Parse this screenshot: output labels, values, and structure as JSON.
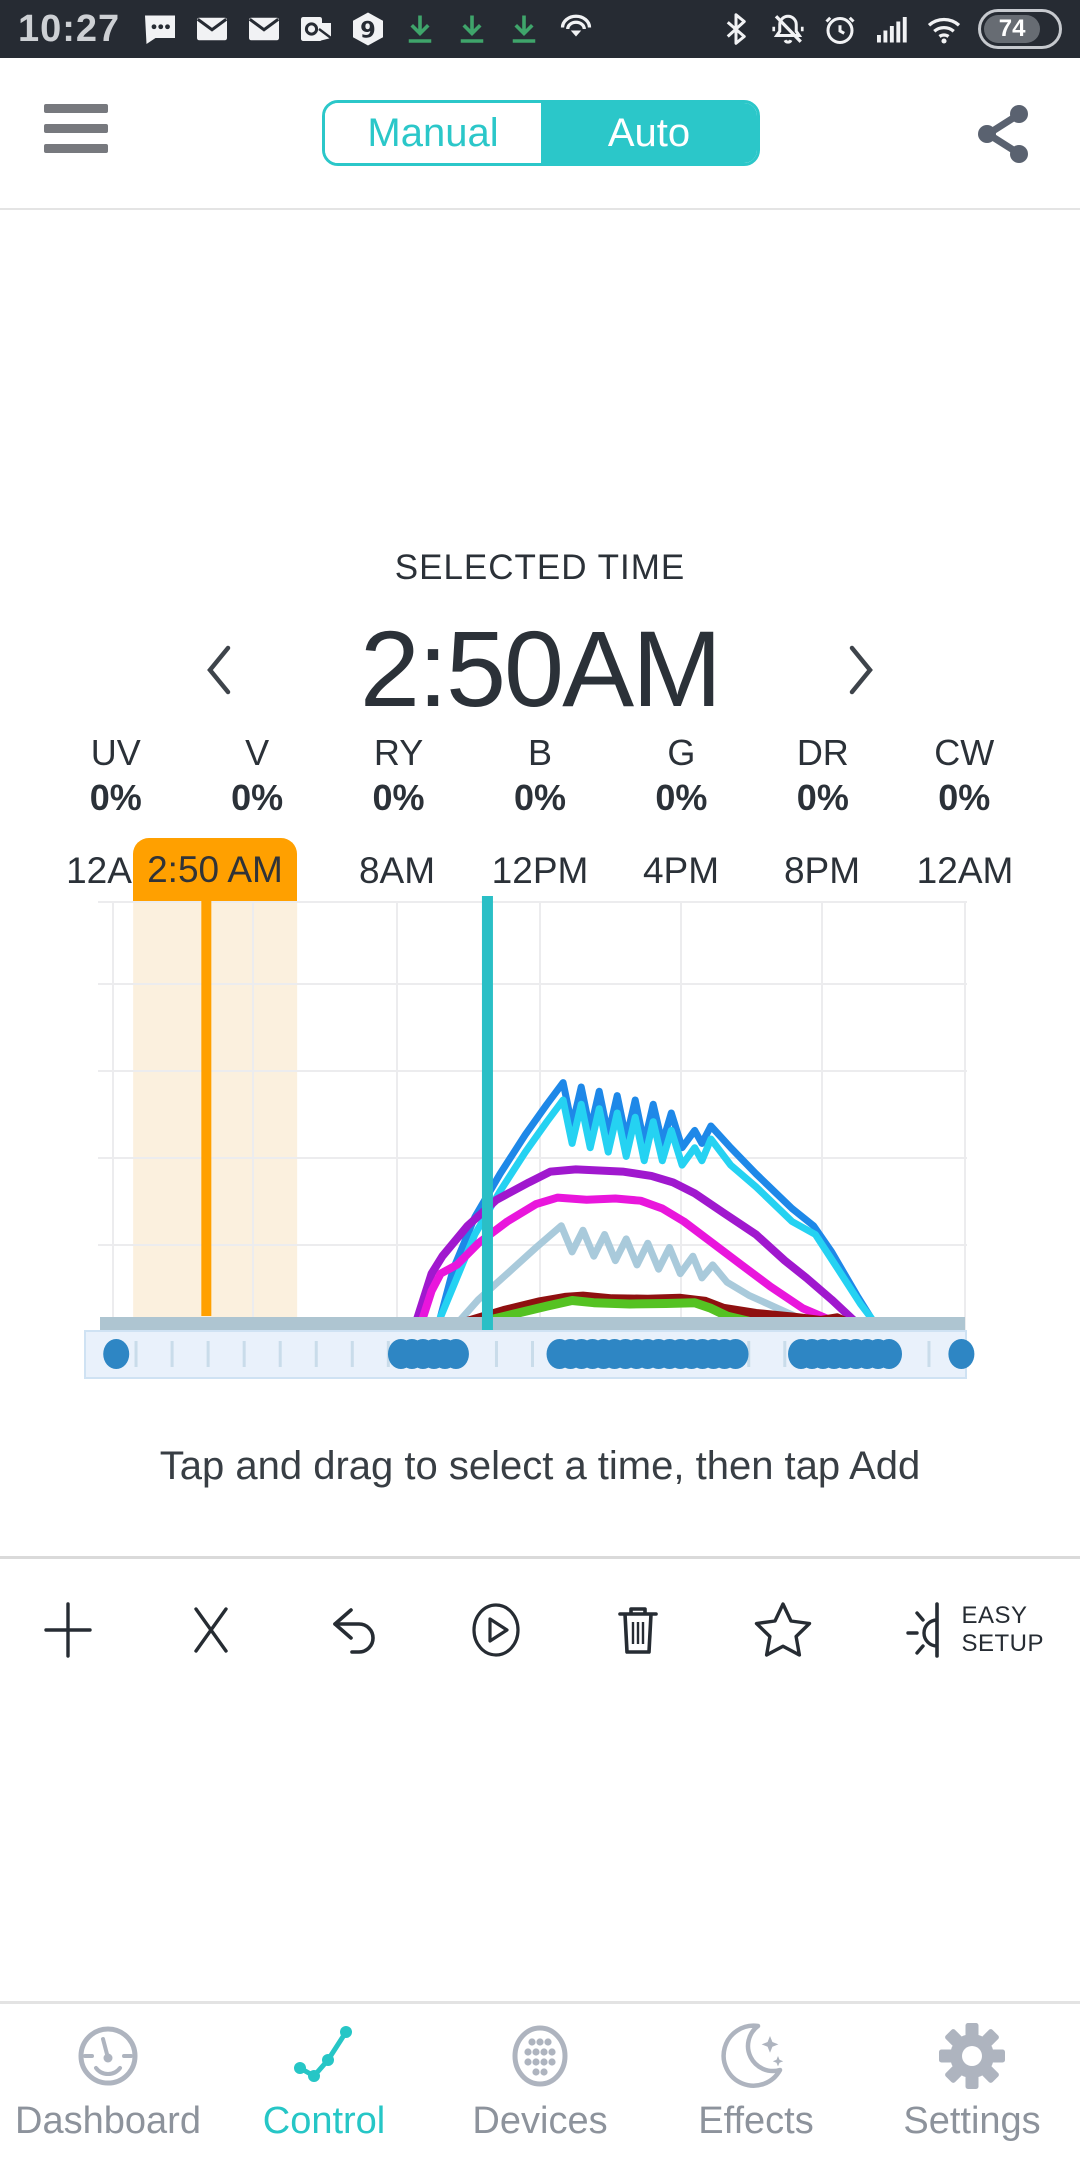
{
  "statusbar": {
    "time": "10:27",
    "battery": "74",
    "left_icons": [
      "sms-icon",
      "mail-icon",
      "mail-icon",
      "outlook-icon",
      "nine-icon",
      "download-icon",
      "download-icon",
      "download-icon",
      "audible-icon"
    ],
    "right_icons": [
      "bluetooth-icon",
      "mute-icon",
      "alarm-icon",
      "signal-icon",
      "wifi-icon",
      "battery-indicator"
    ]
  },
  "header": {
    "modes": [
      {
        "label": "Manual",
        "active": false
      },
      {
        "label": "Auto",
        "active": true
      }
    ]
  },
  "selected": {
    "heading": "SELECTED TIME",
    "value": "2:50AM"
  },
  "channels": [
    {
      "label": "UV",
      "value": "0%"
    },
    {
      "label": "V",
      "value": "0%"
    },
    {
      "label": "RY",
      "value": "0%"
    },
    {
      "label": "B",
      "value": "0%"
    },
    {
      "label": "G",
      "value": "0%"
    },
    {
      "label": "DR",
      "value": "0%"
    },
    {
      "label": "CW",
      "value": "0%"
    }
  ],
  "timeline": {
    "badge": "2:50 AM",
    "labels": [
      "12A",
      "8AM",
      "12PM",
      "4PM",
      "8PM",
      "12AM"
    ]
  },
  "instruction": "Tap and drag to select a time, then tap Add",
  "toolbar": {
    "buttons": [
      "add",
      "clear",
      "undo",
      "play",
      "delete",
      "favorite",
      "easy-setup"
    ],
    "easy": [
      "EASY",
      "SETUP"
    ]
  },
  "nav": [
    {
      "label": "Dashboard",
      "active": false
    },
    {
      "label": "Control",
      "active": true
    },
    {
      "label": "Devices",
      "active": false
    },
    {
      "label": "Effects",
      "active": false
    },
    {
      "label": "Settings",
      "active": false
    }
  ],
  "colors": {
    "accent_teal": "#2bc7c9",
    "selected_orange": "#ffa000",
    "selected_band": "#fbf0de",
    "current_time_teal": "#2abfc6",
    "slider_panel": "#e9f1fb",
    "slider_border": "#cfe2f3",
    "slider_dot": "#2e86c4",
    "slider_tick": "#c9dcea",
    "baseline_strip": "#aec5d1",
    "grid": "#ececee"
  },
  "chart_data": {
    "type": "line",
    "x_unit": "hour_of_day",
    "x_range": [
      0,
      24
    ],
    "y_range": [
      0,
      100
    ],
    "x_tick_labels": [
      "12A",
      "2:50 AM",
      "8AM",
      "12PM",
      "4PM",
      "8PM",
      "12AM"
    ],
    "grid": true,
    "legend_position": "none",
    "markers": {
      "selected_time_hour": 2.95,
      "selected_band_hours": [
        0.92,
        5.47
      ],
      "current_time_hour": 10.75
    },
    "series": [
      {
        "name": "blue-channel",
        "color": "#1e88e8",
        "width": 7,
        "points": [
          [
            9.35,
            0
          ],
          [
            9.8,
            14
          ],
          [
            10.4,
            26
          ],
          [
            11.1,
            36
          ],
          [
            11.8,
            45
          ],
          [
            12.4,
            52
          ],
          [
            12.85,
            57
          ],
          [
            13.1,
            47
          ],
          [
            13.35,
            56
          ],
          [
            13.6,
            46
          ],
          [
            13.85,
            55
          ],
          [
            14.1,
            45
          ],
          [
            14.35,
            54
          ],
          [
            14.6,
            44
          ],
          [
            14.85,
            53
          ],
          [
            15.1,
            43
          ],
          [
            15.35,
            52
          ],
          [
            15.6,
            43
          ],
          [
            15.85,
            50
          ],
          [
            16.15,
            42
          ],
          [
            16.5,
            46
          ],
          [
            16.7,
            43
          ],
          [
            16.95,
            47
          ],
          [
            17.5,
            42
          ],
          [
            18.2,
            36
          ],
          [
            19.2,
            28
          ],
          [
            19.8,
            24
          ],
          [
            20.3,
            18
          ],
          [
            21.0,
            8
          ],
          [
            21.6,
            0
          ]
        ]
      },
      {
        "name": "cyan-channel",
        "color": "#25d2f2",
        "width": 7,
        "points": [
          [
            9.3,
            0
          ],
          [
            9.8,
            10
          ],
          [
            10.4,
            22
          ],
          [
            11.1,
            32
          ],
          [
            11.8,
            41
          ],
          [
            12.4,
            48
          ],
          [
            12.85,
            53
          ],
          [
            13.1,
            43
          ],
          [
            13.35,
            52
          ],
          [
            13.6,
            42
          ],
          [
            13.85,
            51
          ],
          [
            14.1,
            41
          ],
          [
            14.35,
            50
          ],
          [
            14.6,
            40
          ],
          [
            14.85,
            49
          ],
          [
            15.1,
            39
          ],
          [
            15.35,
            48
          ],
          [
            15.6,
            39
          ],
          [
            15.85,
            46
          ],
          [
            16.15,
            38
          ],
          [
            16.5,
            42
          ],
          [
            16.7,
            39
          ],
          [
            16.95,
            44
          ],
          [
            17.5,
            38
          ],
          [
            18.2,
            33
          ],
          [
            19.2,
            25
          ],
          [
            19.85,
            22
          ],
          [
            20.4,
            15
          ],
          [
            21.1,
            6
          ],
          [
            21.65,
            0
          ]
        ]
      },
      {
        "name": "purple-channel",
        "color": "#a018ce",
        "width": 8,
        "points": [
          [
            8.7,
            0
          ],
          [
            9.2,
            13
          ],
          [
            9.5,
            17
          ],
          [
            10.2,
            24
          ],
          [
            11.0,
            30
          ],
          [
            11.9,
            34
          ],
          [
            12.5,
            36.5
          ],
          [
            13.2,
            37
          ],
          [
            14.5,
            36.5
          ],
          [
            15.3,
            35.5
          ],
          [
            15.9,
            34
          ],
          [
            16.5,
            31.5
          ],
          [
            17.3,
            27
          ],
          [
            18.2,
            22
          ],
          [
            19.0,
            16
          ],
          [
            19.6,
            12
          ],
          [
            20.3,
            7
          ],
          [
            21.2,
            0
          ]
        ]
      },
      {
        "name": "magenta-channel",
        "color": "#e916dc",
        "width": 8,
        "points": [
          [
            8.85,
            0
          ],
          [
            9.2,
            9
          ],
          [
            9.45,
            13
          ],
          [
            9.9,
            15
          ],
          [
            10.5,
            20
          ],
          [
            11.3,
            25
          ],
          [
            12.1,
            29
          ],
          [
            12.7,
            30.5
          ],
          [
            13.5,
            30
          ],
          [
            14.3,
            30.3
          ],
          [
            15.0,
            29.8
          ],
          [
            15.6,
            28
          ],
          [
            16.2,
            25
          ],
          [
            17.0,
            20
          ],
          [
            17.8,
            15
          ],
          [
            18.6,
            10
          ],
          [
            19.5,
            5
          ],
          [
            20.2,
            2.5
          ],
          [
            20.9,
            0
          ]
        ]
      },
      {
        "name": "lightblue-channel",
        "color": "#a9cadb",
        "width": 7,
        "points": [
          [
            9.75,
            0
          ],
          [
            10.5,
            7
          ],
          [
            11.3,
            13
          ],
          [
            12.1,
            19
          ],
          [
            12.8,
            24
          ],
          [
            13.1,
            18
          ],
          [
            13.4,
            23
          ],
          [
            13.7,
            17
          ],
          [
            14.0,
            22
          ],
          [
            14.3,
            16
          ],
          [
            14.6,
            21
          ],
          [
            14.9,
            15
          ],
          [
            15.2,
            20
          ],
          [
            15.5,
            14
          ],
          [
            15.8,
            19
          ],
          [
            16.1,
            13
          ],
          [
            16.45,
            17
          ],
          [
            16.7,
            12
          ],
          [
            17.0,
            15
          ],
          [
            17.4,
            11
          ],
          [
            18.0,
            8
          ],
          [
            18.8,
            5
          ],
          [
            19.6,
            2
          ],
          [
            20.4,
            0
          ]
        ]
      },
      {
        "name": "darkred-channel",
        "color": "#8f1010",
        "width": 9,
        "points": [
          [
            9.55,
            0
          ],
          [
            10.2,
            2
          ],
          [
            11.2,
            4.5
          ],
          [
            12.2,
            6.5
          ],
          [
            12.9,
            7.5
          ],
          [
            13.4,
            7.8
          ],
          [
            14.2,
            7.2
          ],
          [
            15.2,
            7.1
          ],
          [
            16.1,
            7.3
          ],
          [
            16.8,
            6.6
          ],
          [
            17.3,
            5
          ],
          [
            18.2,
            3.8
          ],
          [
            19.2,
            3
          ],
          [
            20.0,
            2.2
          ],
          [
            20.45,
            2.8
          ],
          [
            20.8,
            1.5
          ],
          [
            21.2,
            0
          ]
        ]
      },
      {
        "name": "green-channel",
        "color": "#55c222",
        "width": 9,
        "points": [
          [
            9.7,
            0
          ],
          [
            10.4,
            1.5
          ],
          [
            11.4,
            3.5
          ],
          [
            12.4,
            5.5
          ],
          [
            13.1,
            6.8
          ],
          [
            13.7,
            6.3
          ],
          [
            14.7,
            6.0
          ],
          [
            15.7,
            6.1
          ],
          [
            16.5,
            6.3
          ],
          [
            16.95,
            5
          ],
          [
            17.4,
            3.2
          ],
          [
            18.0,
            2
          ],
          [
            18.8,
            1.4
          ],
          [
            19.6,
            0.8
          ],
          [
            20.1,
            0.3
          ],
          [
            20.35,
            0
          ]
        ]
      }
    ],
    "slider": {
      "tick_hours_step": 1,
      "groups": [
        {
          "type": "dot",
          "hour": 0.45
        },
        {
          "type": "run",
          "from": 8.35,
          "to": 10.1
        },
        {
          "type": "run",
          "from": 12.75,
          "to": 17.85
        },
        {
          "type": "run",
          "from": 19.45,
          "to": 21.95
        },
        {
          "type": "dot",
          "hour": 23.9
        }
      ]
    }
  }
}
